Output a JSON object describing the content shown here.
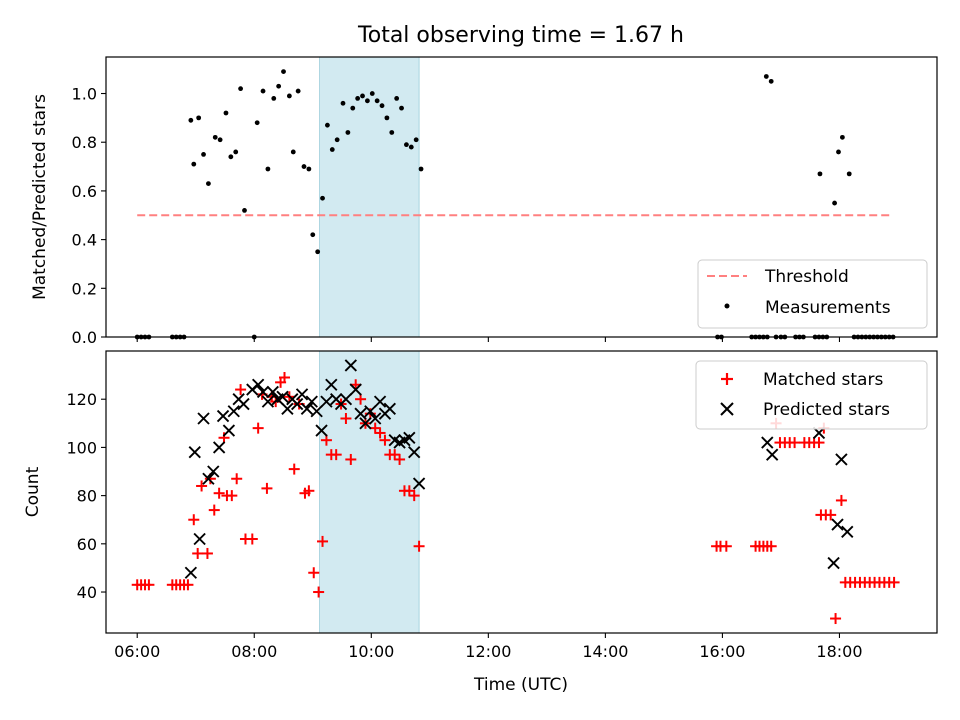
{
  "chart_data": [
    {
      "type": "scatter",
      "title": "Total observing time = 1.67 h",
      "xlabel": "",
      "ylabel": "Matched/Predicted stars",
      "xlim": [
        "05:28",
        "19:40"
      ],
      "ylim": [
        0,
        1.15
      ],
      "x_ticks": [
        "06:00",
        "08:00",
        "10:00",
        "12:00",
        "14:00",
        "16:00",
        "18:00"
      ],
      "x_tick_labels_shown": false,
      "y_ticks": [
        0.0,
        0.2,
        0.4,
        0.6,
        0.8,
        1.0
      ],
      "y_tick_labels": [
        "0.0",
        "0.2",
        "0.4",
        "0.6",
        "0.8",
        "1.0"
      ],
      "grid": false,
      "legend": "bottom-right",
      "shaded_span": {
        "from": "09:07",
        "to": "10:49",
        "color": "#add8e6"
      },
      "threshold": {
        "name": "Threshold",
        "value": 0.5,
        "from": "06:00",
        "to": "18:54",
        "color": "#ff0000",
        "style": "dashed"
      },
      "series": [
        {
          "name": "Measurements",
          "marker": "dot",
          "color": "#000000",
          "points": [
            [
              "06:00",
              0
            ],
            [
              "06:04",
              0
            ],
            [
              "06:08",
              0
            ],
            [
              "06:12",
              0
            ],
            [
              "06:36",
              0
            ],
            [
              "06:40",
              0
            ],
            [
              "06:44",
              0
            ],
            [
              "06:48",
              0
            ],
            [
              "06:55",
              0.89
            ],
            [
              "06:58",
              0.71
            ],
            [
              "07:03",
              0.9
            ],
            [
              "07:08",
              0.75
            ],
            [
              "07:13",
              0.63
            ],
            [
              "07:20",
              0.82
            ],
            [
              "07:25",
              0.81
            ],
            [
              "07:31",
              0.92
            ],
            [
              "07:36",
              0.74
            ],
            [
              "07:41",
              0.76
            ],
            [
              "07:46",
              1.02
            ],
            [
              "07:50",
              0.52
            ],
            [
              "08:00",
              0
            ],
            [
              "08:03",
              0.88
            ],
            [
              "08:09",
              1.01
            ],
            [
              "08:14",
              0.69
            ],
            [
              "08:20",
              0.98
            ],
            [
              "08:25",
              1.03
            ],
            [
              "08:30",
              1.09
            ],
            [
              "08:36",
              0.99
            ],
            [
              "08:40",
              0.76
            ],
            [
              "08:45",
              1.01
            ],
            [
              "08:51",
              0.7
            ],
            [
              "08:56",
              0.69
            ],
            [
              "09:00",
              0.42
            ],
            [
              "09:05",
              0.35
            ],
            [
              "09:10",
              0.57
            ],
            [
              "09:15",
              0.87
            ],
            [
              "09:20",
              0.77
            ],
            [
              "09:25",
              0.81
            ],
            [
              "09:31",
              0.96
            ],
            [
              "09:36",
              0.84
            ],
            [
              "09:41",
              0.94
            ],
            [
              "09:46",
              0.98
            ],
            [
              "09:51",
              0.99
            ],
            [
              "09:56",
              0.97
            ],
            [
              "10:01",
              1.0
            ],
            [
              "10:06",
              0.97
            ],
            [
              "10:11",
              0.95
            ],
            [
              "10:16",
              0.9
            ],
            [
              "10:21",
              0.84
            ],
            [
              "10:26",
              0.98
            ],
            [
              "10:31",
              0.94
            ],
            [
              "10:36",
              0.79
            ],
            [
              "10:41",
              0.78
            ],
            [
              "10:46",
              0.81
            ],
            [
              "10:51",
              0.69
            ],
            [
              "15:55",
              0
            ],
            [
              "15:59",
              0
            ],
            [
              "16:30",
              0
            ],
            [
              "16:34",
              0
            ],
            [
              "16:38",
              0
            ],
            [
              "16:42",
              0
            ],
            [
              "16:46",
              0
            ],
            [
              "16:45",
              1.07
            ],
            [
              "16:50",
              1.05
            ],
            [
              "16:55",
              0
            ],
            [
              "17:00",
              0
            ],
            [
              "17:04",
              0
            ],
            [
              "17:15",
              0
            ],
            [
              "17:19",
              0
            ],
            [
              "17:23",
              0
            ],
            [
              "17:35",
              0
            ],
            [
              "17:39",
              0
            ],
            [
              "17:43",
              0
            ],
            [
              "17:47",
              0
            ],
            [
              "17:40",
              0.67
            ],
            [
              "17:55",
              0.55
            ],
            [
              "17:59",
              0.76
            ],
            [
              "18:03",
              0.82
            ],
            [
              "18:10",
              0.67
            ],
            [
              "18:15",
              0
            ],
            [
              "18:19",
              0
            ],
            [
              "18:23",
              0
            ],
            [
              "18:27",
              0
            ],
            [
              "18:31",
              0
            ],
            [
              "18:35",
              0
            ],
            [
              "18:39",
              0
            ],
            [
              "18:43",
              0
            ],
            [
              "18:47",
              0
            ],
            [
              "18:51",
              0
            ],
            [
              "18:55",
              0
            ]
          ]
        }
      ]
    },
    {
      "type": "scatter",
      "title": "",
      "xlabel": "Time (UTC)",
      "ylabel": "Count",
      "xlim": [
        "05:28",
        "19:40"
      ],
      "ylim": [
        23,
        140
      ],
      "x_ticks": [
        "06:00",
        "08:00",
        "10:00",
        "12:00",
        "14:00",
        "16:00",
        "18:00"
      ],
      "x_tick_labels": [
        "06:00",
        "08:00",
        "10:00",
        "12:00",
        "14:00",
        "16:00",
        "18:00"
      ],
      "y_ticks": [
        40,
        60,
        80,
        100,
        120
      ],
      "y_tick_labels": [
        "40",
        "60",
        "80",
        "100",
        "120"
      ],
      "grid": false,
      "legend": "top-right",
      "shaded_span": {
        "from": "09:07",
        "to": "10:49",
        "color": "#add8e6"
      },
      "series": [
        {
          "name": "Matched stars",
          "marker": "plus",
          "color": "#ff0000",
          "points": [
            [
              "06:00",
              43
            ],
            [
              "06:04",
              43
            ],
            [
              "06:08",
              43
            ],
            [
              "06:12",
              43
            ],
            [
              "06:36",
              43
            ],
            [
              "06:40",
              43
            ],
            [
              "06:44",
              43
            ],
            [
              "06:48",
              43
            ],
            [
              "06:52",
              43
            ],
            [
              "06:58",
              70
            ],
            [
              "07:02",
              56
            ],
            [
              "07:06",
              84
            ],
            [
              "07:12",
              56
            ],
            [
              "07:15",
              87
            ],
            [
              "07:19",
              74
            ],
            [
              "07:24",
              81
            ],
            [
              "07:29",
              104
            ],
            [
              "07:32",
              80
            ],
            [
              "07:37",
              80
            ],
            [
              "07:42",
              87
            ],
            [
              "07:46",
              124
            ],
            [
              "07:51",
              62
            ],
            [
              "07:58",
              62
            ],
            [
              "08:04",
              108
            ],
            [
              "08:08",
              122
            ],
            [
              "08:13",
              83
            ],
            [
              "08:18",
              121
            ],
            [
              "08:22",
              119
            ],
            [
              "08:27",
              127
            ],
            [
              "08:31",
              129
            ],
            [
              "08:36",
              121
            ],
            [
              "08:41",
              91
            ],
            [
              "08:46",
              118
            ],
            [
              "08:52",
              81
            ],
            [
              "08:56",
              82
            ],
            [
              "09:01",
              48
            ],
            [
              "09:06",
              40
            ],
            [
              "09:10",
              61
            ],
            [
              "09:14",
              103
            ],
            [
              "09:19",
              97
            ],
            [
              "09:24",
              97
            ],
            [
              "09:29",
              118
            ],
            [
              "09:34",
              112
            ],
            [
              "09:39",
              95
            ],
            [
              "09:44",
              126
            ],
            [
              "09:49",
              120
            ],
            [
              "09:54",
              110
            ],
            [
              "09:59",
              114
            ],
            [
              "10:04",
              108
            ],
            [
              "10:09",
              106
            ],
            [
              "10:14",
              103
            ],
            [
              "10:19",
              97
            ],
            [
              "10:24",
              97
            ],
            [
              "10:29",
              95
            ],
            [
              "10:34",
              82
            ],
            [
              "10:39",
              82
            ],
            [
              "10:44",
              80
            ],
            [
              "10:49",
              59
            ],
            [
              "15:54",
              59
            ],
            [
              "15:58",
              59
            ],
            [
              "16:04",
              59
            ],
            [
              "16:34",
              59
            ],
            [
              "16:38",
              59
            ],
            [
              "16:42",
              59
            ],
            [
              "16:46",
              59
            ],
            [
              "16:50",
              59
            ],
            [
              "16:55",
              110
            ],
            [
              "16:59",
              102
            ],
            [
              "17:04",
              102
            ],
            [
              "17:09",
              102
            ],
            [
              "17:14",
              102
            ],
            [
              "17:24",
              102
            ],
            [
              "17:29",
              102
            ],
            [
              "17:34",
              102
            ],
            [
              "17:39",
              102
            ],
            [
              "17:44",
              108
            ],
            [
              "17:41",
              72
            ],
            [
              "17:46",
              72
            ],
            [
              "17:51",
              72
            ],
            [
              "17:56",
              29
            ],
            [
              "18:02",
              78
            ],
            [
              "18:06",
              44
            ],
            [
              "18:11",
              44
            ],
            [
              "18:16",
              44
            ],
            [
              "18:21",
              44
            ],
            [
              "18:26",
              44
            ],
            [
              "18:31",
              44
            ],
            [
              "18:36",
              44
            ],
            [
              "18:41",
              44
            ],
            [
              "18:46",
              44
            ],
            [
              "18:51",
              44
            ],
            [
              "18:56",
              44
            ]
          ]
        },
        {
          "name": "Predicted stars",
          "marker": "cross",
          "color": "#000000",
          "points": [
            [
              "06:55",
              48
            ],
            [
              "06:59",
              98
            ],
            [
              "07:04",
              62
            ],
            [
              "07:08",
              112
            ],
            [
              "07:13",
              87
            ],
            [
              "07:18",
              90
            ],
            [
              "07:24",
              100
            ],
            [
              "07:28",
              113
            ],
            [
              "07:34",
              107
            ],
            [
              "07:39",
              115
            ],
            [
              "07:44",
              120
            ],
            [
              "07:49",
              118
            ],
            [
              "07:58",
              124
            ],
            [
              "08:04",
              126
            ],
            [
              "08:09",
              123
            ],
            [
              "08:14",
              119
            ],
            [
              "08:19",
              123
            ],
            [
              "08:24",
              120
            ],
            [
              "08:29",
              121
            ],
            [
              "08:34",
              116
            ],
            [
              "08:39",
              120
            ],
            [
              "08:44",
              118
            ],
            [
              "08:49",
              122
            ],
            [
              "08:54",
              116
            ],
            [
              "08:59",
              119
            ],
            [
              "09:04",
              115
            ],
            [
              "09:09",
              107
            ],
            [
              "09:14",
              119
            ],
            [
              "09:19",
              126
            ],
            [
              "09:24",
              120
            ],
            [
              "09:29",
              118
            ],
            [
              "09:34",
              120
            ],
            [
              "09:39",
              134
            ],
            [
              "09:44",
              124
            ],
            [
              "09:49",
              114
            ],
            [
              "09:54",
              110
            ],
            [
              "09:59",
              115
            ],
            [
              "10:04",
              112
            ],
            [
              "10:09",
              119
            ],
            [
              "10:14",
              114
            ],
            [
              "10:19",
              116
            ],
            [
              "10:24",
              103
            ],
            [
              "10:29",
              102
            ],
            [
              "10:34",
              103
            ],
            [
              "10:39",
              104
            ],
            [
              "10:44",
              98
            ],
            [
              "10:49",
              85
            ],
            [
              "16:46",
              102
            ],
            [
              "16:51",
              97
            ],
            [
              "17:39",
              106
            ],
            [
              "17:54",
              52
            ],
            [
              "17:58",
              68
            ],
            [
              "18:02",
              95
            ],
            [
              "18:08",
              65
            ]
          ]
        }
      ]
    }
  ]
}
